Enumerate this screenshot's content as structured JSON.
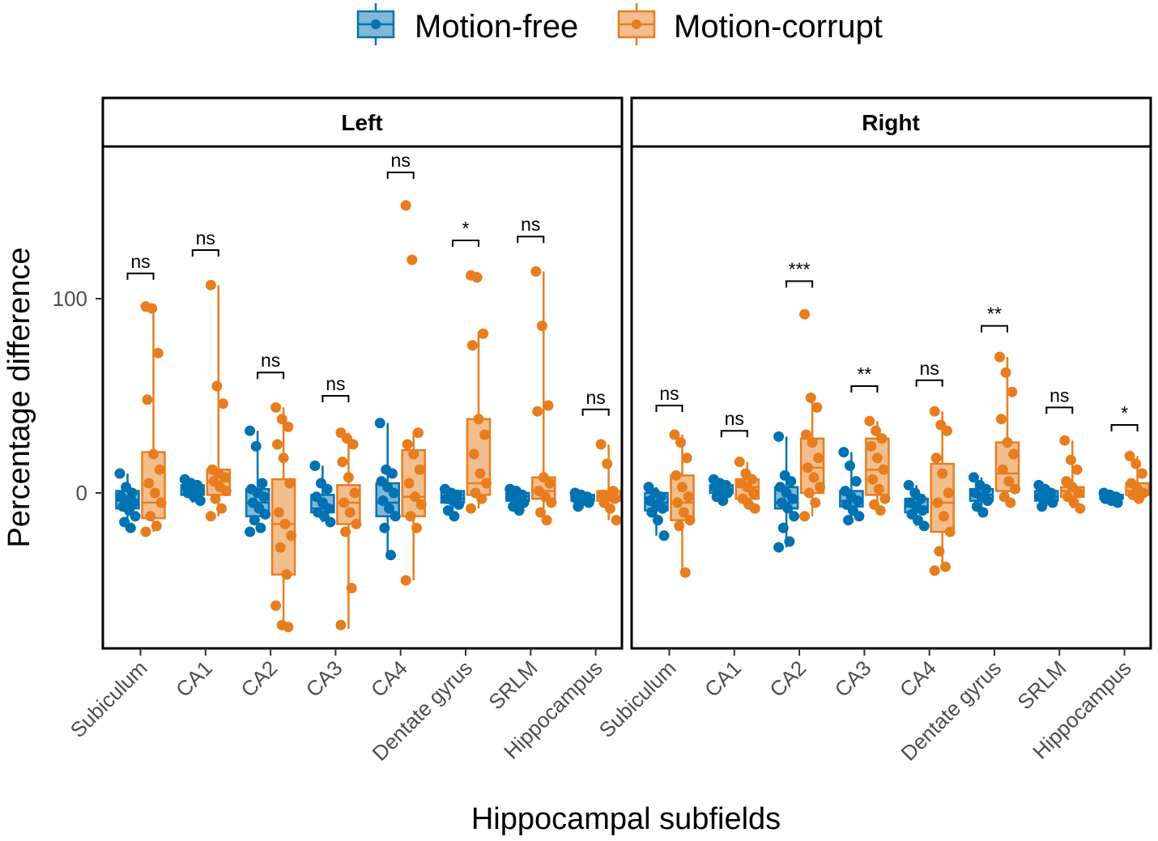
{
  "chart_data": {
    "type": "box",
    "xlabel": "Hippocampal subfields",
    "ylabel": "Percentage difference",
    "ylim": [
      -80,
      180
    ],
    "yticks": [
      0,
      100
    ],
    "categories": [
      "Subiculum",
      "CA1",
      "CA2",
      "CA3",
      "CA4",
      "Dentate gyrus",
      "SRLM",
      "Hippocampus"
    ],
    "legend": [
      {
        "name": "Motion-free",
        "color": "#0072B2"
      },
      {
        "name": "Motion-corrupt",
        "color": "#E87D1E"
      }
    ],
    "facets": [
      {
        "label": "Left",
        "groups": [
          {
            "category": "Subiculum",
            "free": {
              "box": [
                -13,
                -8,
                -4,
                1,
                10
              ],
              "points": [
                10,
                3,
                0,
                -2,
                -4,
                -5,
                -7,
                -9,
                -12,
                -15,
                -18
              ]
            },
            "corrupt": {
              "box": [
                -20,
                -13,
                -5,
                21,
                96
              ],
              "points": [
                96,
                95,
                72,
                48,
                20,
                12,
                5,
                0,
                -5,
                -12,
                -17,
                -20
              ]
            },
            "sig": "ns",
            "sig_y": 113
          },
          {
            "category": "CA1",
            "free": {
              "box": [
                -5,
                -1,
                2,
                4,
                7
              ],
              "points": [
                7,
                5,
                4,
                3,
                2,
                1,
                0,
                -2,
                -4
              ]
            },
            "corrupt": {
              "box": [
                -12,
                -1,
                6,
                12,
                107
              ],
              "points": [
                107,
                55,
                46,
                12,
                10,
                8,
                6,
                3,
                1,
                -3,
                -8,
                -12
              ]
            },
            "sig": "ns",
            "sig_y": 125
          },
          {
            "category": "CA2",
            "free": {
              "box": [
                -20,
                -12,
                -5,
                2,
                32
              ],
              "points": [
                32,
                24,
                5,
                2,
                0,
                -2,
                -5,
                -8,
                -11,
                -14,
                -18,
                -20
              ]
            },
            "corrupt": {
              "box": [
                -69,
                -42,
                -16,
                7,
                44
              ],
              "points": [
                44,
                38,
                34,
                25,
                18,
                5,
                -10,
                -16,
                -22,
                -28,
                -42,
                -58,
                -68,
                -69
              ]
            },
            "sig": "ns",
            "sig_y": 62
          },
          {
            "category": "CA3",
            "free": {
              "box": [
                -15,
                -10,
                -8,
                -1,
                14
              ],
              "points": [
                14,
                5,
                2,
                -2,
                -5,
                -8,
                -10,
                -12,
                -15
              ]
            },
            "corrupt": {
              "box": [
                -70,
                -16,
                -5,
                4,
                31
              ],
              "points": [
                31,
                28,
                25,
                16,
                8,
                0,
                -5,
                -10,
                -16,
                -20,
                -49,
                -68
              ]
            },
            "sig": "ns",
            "sig_y": 50
          },
          {
            "category": "CA4",
            "free": {
              "box": [
                -32,
                -12,
                -5,
                5,
                36
              ],
              "points": [
                36,
                12,
                10,
                6,
                3,
                0,
                -4,
                -8,
                -12,
                -18,
                -32
              ]
            },
            "corrupt": {
              "box": [
                -45,
                -12,
                -2,
                22,
                32
              ],
              "points": [
                148,
                120,
                31,
                25,
                20,
                12,
                5,
                -2,
                -6,
                -12,
                -18,
                -45
              ]
            },
            "sig": "ns",
            "sig_y": 165
          },
          {
            "category": "Dentate gyrus",
            "free": {
              "box": [
                -13,
                -5,
                -3,
                1,
                2
              ],
              "points": [
                2,
                0,
                -1,
                -3,
                -4,
                -6,
                -9,
                -12
              ]
            },
            "corrupt": {
              "box": [
                -8,
                -1,
                5,
                38,
                83
              ],
              "points": [
                112,
                111,
                82,
                76,
                38,
                30,
                20,
                10,
                5,
                0,
                -3,
                -8
              ]
            },
            "sig": "*",
            "sig_y": 130
          },
          {
            "category": "SRLM",
            "free": {
              "box": [
                -9,
                -4,
                -2,
                0,
                2
              ],
              "points": [
                2,
                1,
                -1,
                -2,
                -3,
                -5,
                -7,
                -9
              ]
            },
            "corrupt": {
              "box": [
                -14,
                -3,
                1,
                8,
                114
              ],
              "points": [
                114,
                86,
                45,
                42,
                8,
                5,
                1,
                -2,
                -5,
                -10,
                -14
              ]
            },
            "sig": "ns",
            "sig_y": 132
          },
          {
            "category": "Hippocampus",
            "free": {
              "box": [
                -8,
                -4,
                -3,
                -1,
                0
              ],
              "points": [
                0,
                -1,
                -2,
                -3,
                -4,
                -5,
                -7
              ]
            },
            "corrupt": {
              "box": [
                -14,
                -4,
                -2,
                1,
                25
              ],
              "points": [
                25,
                15,
                1,
                -1,
                -2,
                -3,
                -5,
                -8,
                -14
              ]
            },
            "sig": "ns",
            "sig_y": 43
          }
        ]
      },
      {
        "label": "Right",
        "groups": [
          {
            "category": "Subiculum",
            "free": {
              "box": [
                -22,
                -9,
                -5,
                0,
                3
              ],
              "points": [
                3,
                0,
                -2,
                -4,
                -6,
                -8,
                -10,
                -14,
                -22
              ]
            },
            "corrupt": {
              "box": [
                -41,
                -14,
                -5,
                9,
                30
              ],
              "points": [
                30,
                26,
                18,
                9,
                3,
                -2,
                -5,
                -10,
                -14,
                -17,
                -41
              ]
            },
            "sig": "ns",
            "sig_y": 45
          },
          {
            "category": "CA1",
            "free": {
              "box": [
                -4,
                0,
                2,
                4,
                7
              ],
              "points": [
                7,
                5,
                4,
                3,
                1,
                0,
                -2,
                -4
              ]
            },
            "corrupt": {
              "box": [
                -8,
                -3,
                3,
                7,
                16
              ],
              "points": [
                16,
                10,
                7,
                5,
                3,
                0,
                -3,
                -6,
                -8
              ]
            },
            "sig": "ns",
            "sig_y": 32
          },
          {
            "category": "CA2",
            "free": {
              "box": [
                -28,
                -8,
                -5,
                3,
                29
              ],
              "points": [
                29,
                9,
                6,
                3,
                0,
                -3,
                -5,
                -8,
                -12,
                -18,
                -25,
                -28
              ]
            },
            "corrupt": {
              "box": [
                -12,
                0,
                13,
                28,
                49
              ],
              "points": [
                92,
                49,
                44,
                30,
                26,
                18,
                13,
                8,
                3,
                0,
                -5,
                -12
              ]
            },
            "sig": "***",
            "sig_y": 109
          },
          {
            "category": "CA3",
            "free": {
              "box": [
                -14,
                -7,
                -4,
                1,
                21
              ],
              "points": [
                21,
                14,
                6,
                1,
                -2,
                -4,
                -6,
                -9,
                -12,
                -14
              ]
            },
            "corrupt": {
              "box": [
                -9,
                -1,
                12,
                28,
                37
              ],
              "points": [
                37,
                32,
                28,
                24,
                18,
                12,
                7,
                2,
                -3,
                -6,
                -9
              ]
            },
            "sig": "**",
            "sig_y": 55
          },
          {
            "category": "CA4",
            "free": {
              "box": [
                -17,
                -10,
                -7,
                -3,
                4
              ],
              "points": [
                4,
                0,
                -3,
                -5,
                -7,
                -9,
                -11,
                -14,
                -17
              ]
            },
            "corrupt": {
              "box": [
                -40,
                -20,
                -5,
                15,
                42
              ],
              "points": [
                42,
                35,
                32,
                18,
                10,
                0,
                -5,
                -12,
                -20,
                -30,
                -38,
                -40
              ]
            },
            "sig": "ns",
            "sig_y": 58
          },
          {
            "category": "Dentate gyrus",
            "free": {
              "box": [
                -10,
                -4,
                -1,
                2,
                8
              ],
              "points": [
                8,
                4,
                2,
                0,
                -2,
                -4,
                -7,
                -10
              ]
            },
            "corrupt": {
              "box": [
                -5,
                1,
                10,
                26,
                70
              ],
              "points": [
                70,
                62,
                52,
                38,
                26,
                20,
                12,
                6,
                2,
                -2,
                -5
              ]
            },
            "sig": "**",
            "sig_y": 86
          },
          {
            "category": "SRLM",
            "free": {
              "box": [
                -7,
                -4,
                -2,
                1,
                4
              ],
              "points": [
                4,
                2,
                0,
                -2,
                -3,
                -5,
                -7
              ]
            },
            "corrupt": {
              "box": [
                -8,
                -2,
                1,
                3,
                27
              ],
              "points": [
                27,
                17,
                12,
                6,
                3,
                0,
                -2,
                -5,
                -8
              ]
            },
            "sig": "ns",
            "sig_y": 44
          },
          {
            "category": "Hippocampus",
            "free": {
              "box": [
                -5,
                -3,
                -2,
                -1,
                0
              ],
              "points": [
                0,
                -1,
                -2,
                -3,
                -4,
                -5
              ]
            },
            "corrupt": {
              "box": [
                -3,
                -1,
                1,
                5,
                19
              ],
              "points": [
                19,
                15,
                10,
                5,
                2,
                0,
                -1,
                -3
              ]
            },
            "sig": "*",
            "sig_y": 35
          }
        ]
      }
    ]
  }
}
